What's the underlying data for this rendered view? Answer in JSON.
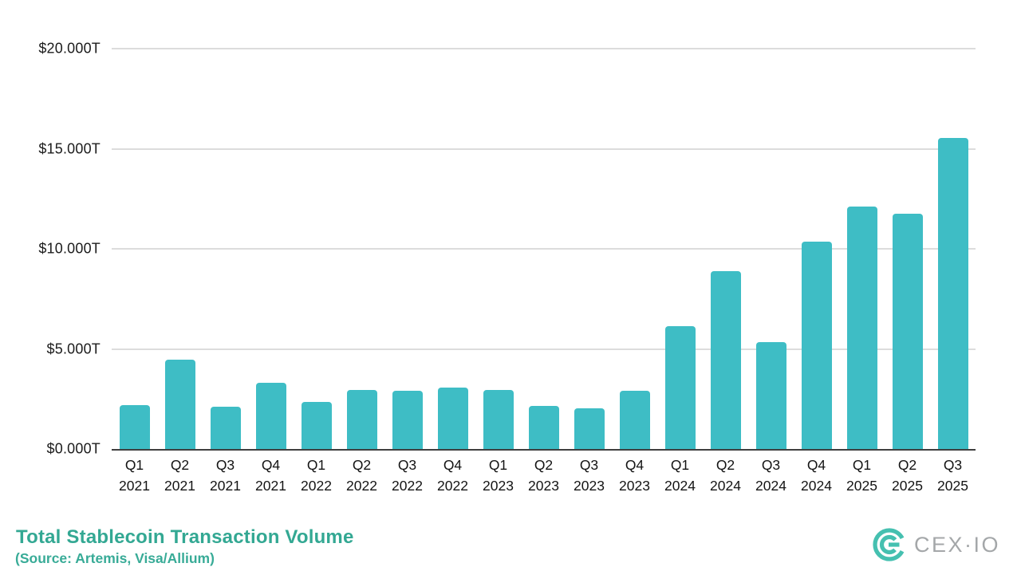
{
  "chart_data": {
    "type": "bar",
    "title": "Total Stablecoin Transaction Volume",
    "source": "(Source: Artemis, Visa/Allium)",
    "xlabel": "",
    "ylabel": "",
    "ylim": [
      0,
      20
    ],
    "grid": "horizontal",
    "legend": "none",
    "bar_color": "#3ebdc5",
    "y_ticks": [
      {
        "value": 20,
        "label": "$20.000T"
      },
      {
        "value": 15,
        "label": "$15.000T"
      },
      {
        "value": 10,
        "label": "$10.000T"
      },
      {
        "value": 5,
        "label": "$5.000T"
      },
      {
        "value": 0,
        "label": "$0.000T"
      }
    ],
    "categories": [
      {
        "quarter": "Q1",
        "year": "2021"
      },
      {
        "quarter": "Q2",
        "year": "2021"
      },
      {
        "quarter": "Q3",
        "year": "2021"
      },
      {
        "quarter": "Q4",
        "year": "2021"
      },
      {
        "quarter": "Q1",
        "year": "2022"
      },
      {
        "quarter": "Q2",
        "year": "2022"
      },
      {
        "quarter": "Q3",
        "year": "2022"
      },
      {
        "quarter": "Q4",
        "year": "2022"
      },
      {
        "quarter": "Q1",
        "year": "2023"
      },
      {
        "quarter": "Q2",
        "year": "2023"
      },
      {
        "quarter": "Q3",
        "year": "2023"
      },
      {
        "quarter": "Q4",
        "year": "2023"
      },
      {
        "quarter": "Q1",
        "year": "2024"
      },
      {
        "quarter": "Q2",
        "year": "2024"
      },
      {
        "quarter": "Q3",
        "year": "2024"
      },
      {
        "quarter": "Q4",
        "year": "2024"
      },
      {
        "quarter": "Q1",
        "year": "2025"
      },
      {
        "quarter": "Q2",
        "year": "2025"
      },
      {
        "quarter": "Q3",
        "year": "2025"
      }
    ],
    "values": [
      2.2,
      4.45,
      2.1,
      3.3,
      2.35,
      2.95,
      2.9,
      3.05,
      2.95,
      2.15,
      2.05,
      2.9,
      6.15,
      8.9,
      5.35,
      10.35,
      12.1,
      11.75,
      15.55
    ],
    "unit": "trillions USD"
  },
  "footer": {
    "title": "Total Stablecoin Transaction Volume",
    "source": "(Source: Artemis, Visa/Allium)",
    "logo_text": "CEX·IO",
    "logo_color": "#45c0b0",
    "logo_text_color": "#a4a7a9"
  }
}
